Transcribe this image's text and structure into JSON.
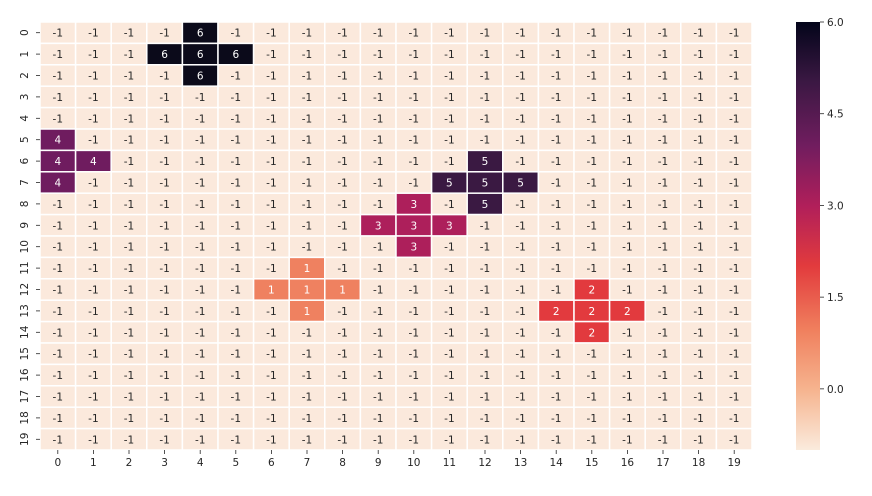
{
  "chart_data": {
    "type": "heatmap",
    "title": "",
    "xlabel": "",
    "ylabel": "",
    "x_categories": [
      "0",
      "1",
      "2",
      "3",
      "4",
      "5",
      "6",
      "7",
      "8",
      "9",
      "10",
      "11",
      "12",
      "13",
      "14",
      "15",
      "16",
      "17",
      "18",
      "19"
    ],
    "y_categories": [
      "0",
      "1",
      "2",
      "3",
      "4",
      "5",
      "6",
      "7",
      "8",
      "9",
      "10",
      "11",
      "12",
      "13",
      "14",
      "15",
      "16",
      "17",
      "18",
      "19"
    ],
    "default_value": -1,
    "nonzero_cells": [
      {
        "row": 0,
        "col": 4,
        "value": 6
      },
      {
        "row": 1,
        "col": 3,
        "value": 6
      },
      {
        "row": 1,
        "col": 4,
        "value": 6
      },
      {
        "row": 1,
        "col": 5,
        "value": 6
      },
      {
        "row": 2,
        "col": 4,
        "value": 6
      },
      {
        "row": 5,
        "col": 0,
        "value": 4
      },
      {
        "row": 6,
        "col": 0,
        "value": 4
      },
      {
        "row": 6,
        "col": 1,
        "value": 4
      },
      {
        "row": 7,
        "col": 0,
        "value": 4
      },
      {
        "row": 6,
        "col": 12,
        "value": 5
      },
      {
        "row": 7,
        "col": 11,
        "value": 5
      },
      {
        "row": 7,
        "col": 12,
        "value": 5
      },
      {
        "row": 7,
        "col": 13,
        "value": 5
      },
      {
        "row": 8,
        "col": 12,
        "value": 5
      },
      {
        "row": 8,
        "col": 10,
        "value": 3
      },
      {
        "row": 9,
        "col": 9,
        "value": 3
      },
      {
        "row": 9,
        "col": 10,
        "value": 3
      },
      {
        "row": 9,
        "col": 11,
        "value": 3
      },
      {
        "row": 10,
        "col": 10,
        "value": 3
      },
      {
        "row": 11,
        "col": 7,
        "value": 1
      },
      {
        "row": 12,
        "col": 6,
        "value": 1
      },
      {
        "row": 12,
        "col": 7,
        "value": 1
      },
      {
        "row": 12,
        "col": 8,
        "value": 1
      },
      {
        "row": 13,
        "col": 7,
        "value": 1
      },
      {
        "row": 12,
        "col": 15,
        "value": 2
      },
      {
        "row": 13,
        "col": 14,
        "value": 2
      },
      {
        "row": 13,
        "col": 15,
        "value": 2
      },
      {
        "row": 13,
        "col": 16,
        "value": 2
      },
      {
        "row": 14,
        "col": 15,
        "value": 2
      }
    ],
    "colorbar": {
      "min": -1,
      "max": 6,
      "ticks": [
        "0.0",
        "1.5",
        "3.0",
        "4.5",
        "6.0"
      ],
      "tick_values": [
        0,
        1.5,
        3,
        4.5,
        6
      ]
    },
    "colors": {
      "-1": "#fbe9dc",
      "1": "#ef8160",
      "2": "#e23a3e",
      "3": "#ad1f5b",
      "4": "#6f1c5f",
      "5": "#3a1942",
      "6": "#0b0a1a"
    }
  }
}
